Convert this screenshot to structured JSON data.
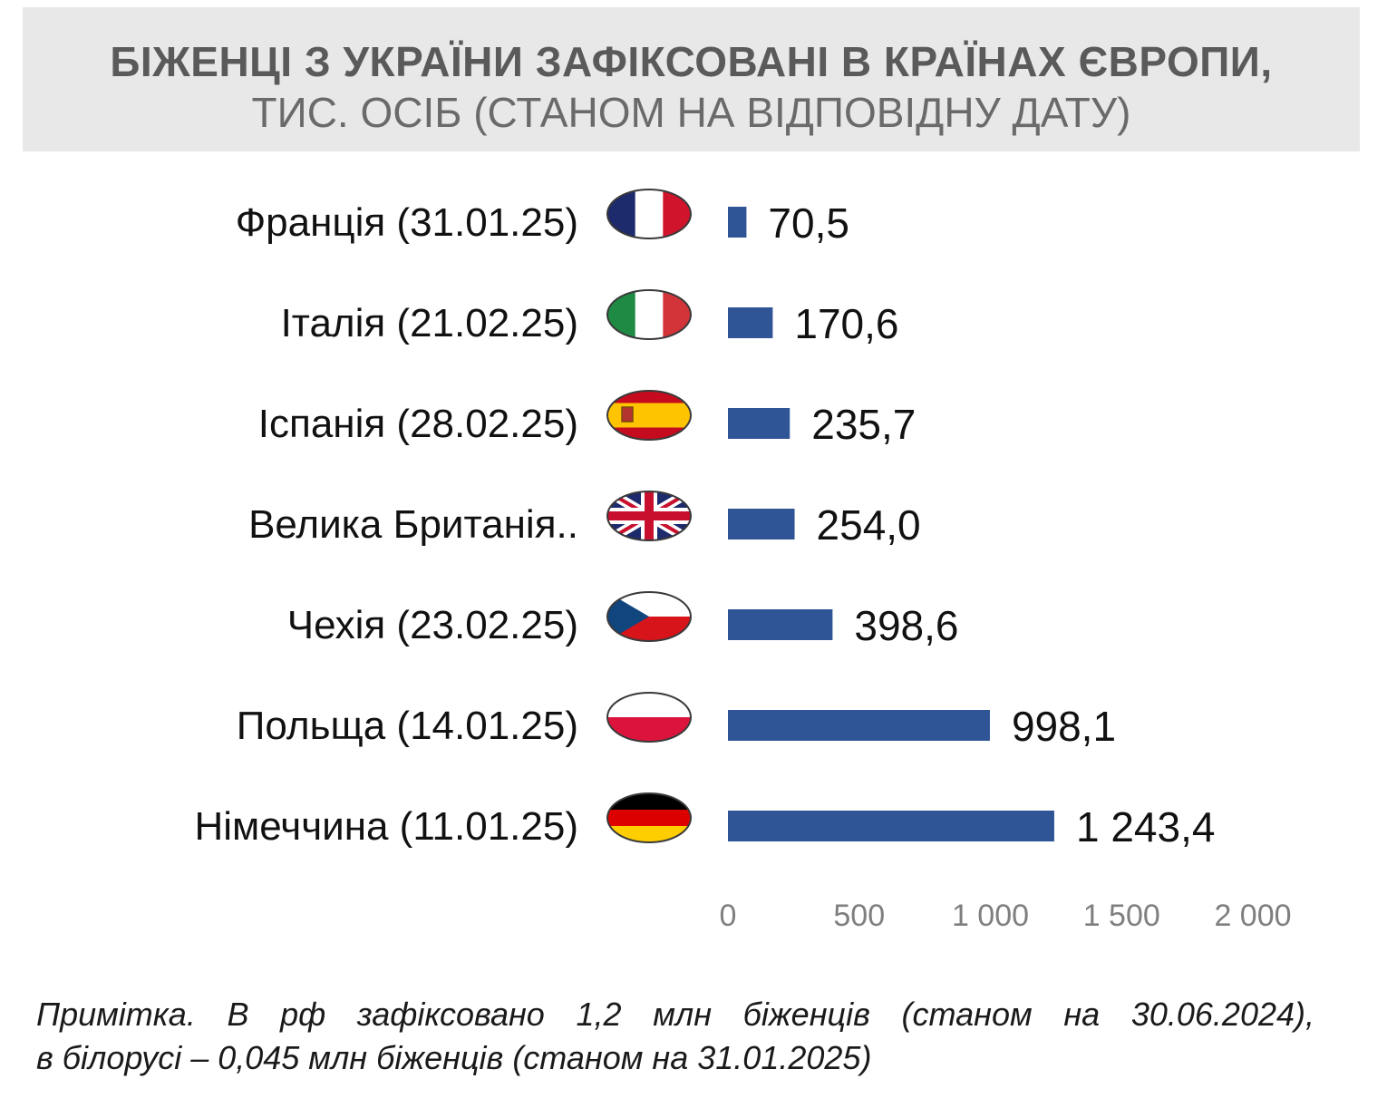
{
  "title": {
    "line1": "БІЖЕНЦІ З УКРАЇНИ ЗАФІКСОВАНІ В КРАЇНАХ ЄВРОПИ,",
    "line2": "ТИС. ОСІБ (СТАНОМ НА ВІДПОВІДНУ ДАТУ)"
  },
  "note": {
    "line1": "Примітка. В рф зафіксовано 1,2 млн біженців (станом на 30.06.2024),",
    "line2": "в білорусі – 0,045 млн біженців (станом на 31.01.2025)"
  },
  "colors": {
    "bar": "#2f5597",
    "axis_text": "#7f7f7f",
    "title_bg": "#e8e8e8"
  },
  "chart_data": {
    "type": "bar",
    "orientation": "horizontal",
    "categories": [
      "Франція (31.01.25)",
      "Італія (21.02.25)",
      "Іспанія (28.02.25)",
      "Велика Британія..",
      "Чехія (23.02.25)",
      "Польща (14.01.25)",
      "Німеччина (11.01.25)"
    ],
    "values": [
      70.5,
      170.6,
      235.7,
      254.0,
      398.6,
      998.1,
      1243.4
    ],
    "value_labels": [
      "70,5",
      "170,6",
      "235,7",
      "254,0",
      "398,6",
      "998,1",
      "1 243,4"
    ],
    "flags": [
      "france-flag",
      "italy-flag",
      "spain-flag",
      "uk-flag",
      "czechia-flag",
      "poland-flag",
      "germany-flag"
    ],
    "xlim": [
      0,
      2000
    ],
    "xticks": [
      0,
      500,
      1000,
      1500,
      2000
    ],
    "xtick_labels": [
      "0",
      "500",
      "1 000",
      "1 500",
      "2 000"
    ],
    "grid": false,
    "legend": "none"
  }
}
